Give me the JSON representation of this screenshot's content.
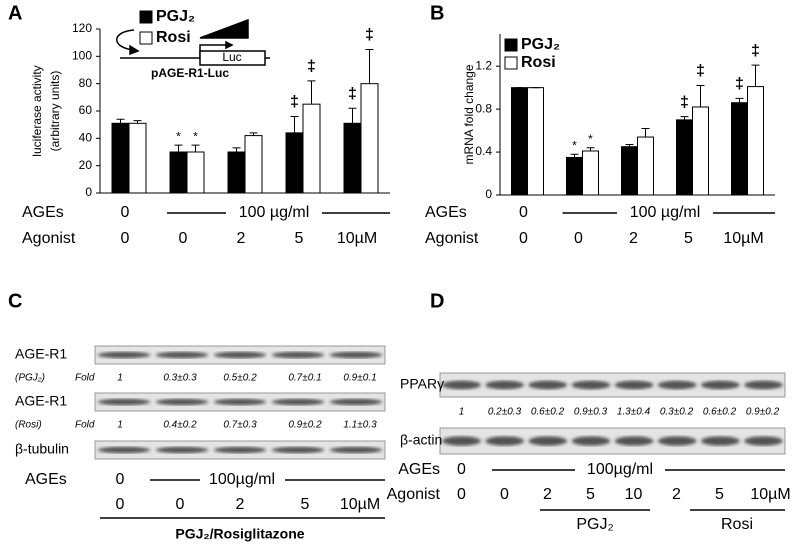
{
  "panels": [
    "A",
    "B",
    "C",
    "D"
  ],
  "chart_data": [
    {
      "type": "bar",
      "ylabel": [
        "luciferase activity",
        "(arbitrary units)"
      ],
      "categories": [
        "0",
        "0",
        "2",
        "5",
        "10µM"
      ],
      "series": [
        {
          "name": "PGJ₂",
          "color": "#000000",
          "values": [
            51,
            30,
            30,
            44,
            51
          ],
          "errors": [
            3,
            5,
            3,
            12,
            11
          ],
          "markers": [
            null,
            "*",
            null,
            "‡",
            "‡"
          ]
        },
        {
          "name": "Rosi",
          "color": "#ffffff",
          "values": [
            51,
            30,
            42,
            65,
            80
          ],
          "errors": [
            2,
            5,
            2,
            17,
            25
          ],
          "markers": [
            null,
            "*",
            null,
            "‡",
            "‡"
          ]
        }
      ],
      "ylim": [
        0,
        120
      ],
      "yticks": [
        0,
        20,
        40,
        60,
        80,
        100,
        120
      ],
      "rows": {
        "ages_label": "AGEs",
        "ages_zero": "0",
        "ages_dose": "100 µg/ml",
        "agonist_label": "Agonist"
      },
      "inset": {
        "reporter": "Luc",
        "construct": "pAGE-R1-Luc"
      }
    },
    {
      "type": "bar",
      "ylabel": [
        "mRNA fold change"
      ],
      "categories": [
        "0",
        "0",
        "2",
        "5",
        "10µM"
      ],
      "series": [
        {
          "name": "PGJ₂",
          "color": "#000000",
          "values": [
            1.0,
            0.35,
            0.45,
            0.7,
            0.86
          ],
          "errors": [
            0,
            0.03,
            0.02,
            0.03,
            0.04
          ],
          "markers": [
            null,
            "*",
            null,
            "‡",
            "‡"
          ]
        },
        {
          "name": "Rosi",
          "color": "#ffffff",
          "values": [
            1.0,
            0.41,
            0.54,
            0.82,
            1.01
          ],
          "errors": [
            0,
            0.03,
            0.08,
            0.2,
            0.2
          ],
          "markers": [
            null,
            "*",
            null,
            "‡",
            "‡"
          ]
        }
      ],
      "ylim": [
        0,
        1.5
      ],
      "yticks": [
        0,
        0.4,
        0.8,
        1.2
      ],
      "rows": {
        "ages_label": "AGEs",
        "ages_zero": "0",
        "ages_dose": "100 µg/ml",
        "agonist_label": "Agonist"
      }
    }
  ],
  "blots": [
    {
      "rows": [
        {
          "label": "AGE-R1",
          "sublabel": "(PGJ₂)",
          "fold_label": "Fold",
          "fold": [
            "1",
            "0.3±0.3",
            "0.5±0.2",
            "0.7±0.1",
            "0.9±0.1"
          ]
        },
        {
          "label": "AGE-R1",
          "sublabel": "(Rosi)",
          "fold_label": "Fold",
          "fold": [
            "1",
            "0.4±0.2",
            "0.7±0.3",
            "0.9±0.2",
            "1.1±0.3"
          ]
        }
      ],
      "loading": "β-tubulin",
      "ages_label": "AGEs",
      "ages_zero": "0",
      "ages_dose": "100µg/ml",
      "agonist": [
        "0",
        "0",
        "2",
        "5",
        "10µM"
      ],
      "group": "PGJ₂/Rosiglitazone"
    },
    {
      "target": "PPARγ",
      "fold": [
        "1",
        "0.2±0.3",
        "0.6±0.2",
        "0.9±0.3",
        "1.3±0.4",
        "0.3±0.2",
        "0.6±0.2",
        "0.9±0.2"
      ],
      "loading": "β-actin",
      "ages_label": "AGEs",
      "ages_zero": "0",
      "ages_dose": "100µg/ml",
      "agonist_label": "Agonist",
      "agonist": [
        "0",
        "0",
        "2",
        "5",
        "10",
        "2",
        "5",
        "10µM"
      ],
      "groups": [
        "PGJ₂",
        "Rosi"
      ]
    }
  ]
}
